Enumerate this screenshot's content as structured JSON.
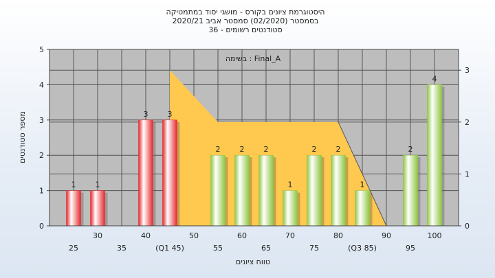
{
  "chart_data": {
    "type": "bar",
    "title_lines": [
      "היסטוגרמת ציונים בקורס - מושגי יסוד במתמטיקה",
      "בסמסטר (02/2020) סמסטר אביב 2020/21",
      "סטודנטים רשומים - 36"
    ],
    "annotation": "בשימה : Final_A",
    "ylabel": "מספר סטודנטים",
    "xlabel": "טווח ציונים",
    "ylim": [
      0,
      5
    ],
    "yticks": [
      0,
      1,
      2,
      3,
      4,
      5
    ],
    "y2lim": [
      0,
      3.4
    ],
    "y2ticks": [
      0,
      1,
      2,
      3
    ],
    "x_tick_labels": [
      "25",
      "30",
      "35",
      "40",
      "(Q1 45)",
      "50",
      "55",
      "60",
      "65",
      "70",
      "75",
      "80",
      "(Q3 85)",
      "90",
      "95",
      "100"
    ],
    "categories": [
      25,
      30,
      35,
      40,
      45,
      50,
      55,
      60,
      65,
      70,
      75,
      80,
      85,
      90,
      95,
      100
    ],
    "series": [
      {
        "color": "#e8262b",
        "values": [
          1,
          1,
          null,
          3,
          3,
          null,
          null,
          null,
          null,
          null,
          null,
          null,
          null,
          null,
          null,
          null
        ]
      },
      {
        "color": "#8fc640",
        "values": [
          null,
          null,
          null,
          null,
          null,
          null,
          2,
          2,
          2,
          1,
          2,
          2,
          1,
          null,
          2,
          4
        ]
      }
    ],
    "box_area": {
      "color": "#ffc84f",
      "points": [
        [
          45,
          3.0
        ],
        [
          55,
          2.0
        ],
        [
          80,
          2.0
        ],
        [
          90,
          0
        ]
      ],
      "base_start": 45
    },
    "grid": true
  }
}
